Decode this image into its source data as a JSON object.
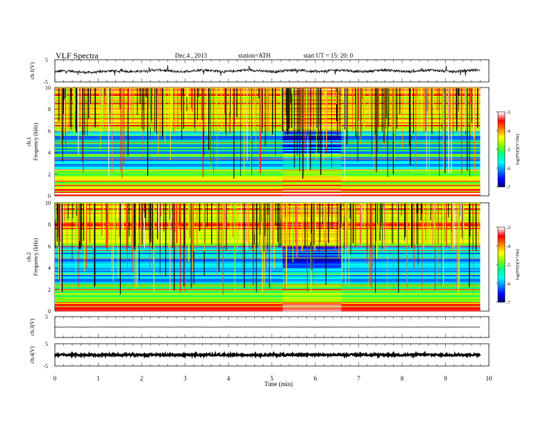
{
  "header": {
    "title": "VLF  Spectra",
    "date": "Dec.4  , 2013",
    "station": "station=ATH",
    "start": "start  UT  =    15: 20: 0"
  },
  "chart_data": [
    {
      "type": "line",
      "name": "ch1-waveform",
      "ylabel": "ch.1(V)",
      "ylim": [
        -5,
        5
      ],
      "yticks": [
        "5",
        "-5"
      ],
      "baseline": 0,
      "xlim": [
        0,
        10
      ],
      "x_end": 9.8
    },
    {
      "type": "heatmap",
      "name": "ch1-spectrogram",
      "ylabel": "ch.1\nFrequency  (kHz)",
      "ylabel_line1": "ch.1",
      "ylabel_line2": "Frequency  (kHz)",
      "ylim": [
        0,
        10
      ],
      "yticks": [
        "0",
        "2",
        "4",
        "6",
        "8",
        "10"
      ],
      "xlim": [
        0,
        10
      ],
      "x_end": 9.8,
      "disturbance_interval_min": [
        5.25,
        6.6
      ],
      "colorbar": {
        "label": "log(PSD)(V²/Hz)",
        "range": [
          -7,
          -3
        ],
        "ticks": [
          "-3",
          "-4",
          "-5",
          "-6",
          "-7"
        ]
      }
    },
    {
      "type": "heatmap",
      "name": "ch2-spectrogram",
      "ylabel": "ch.2\nFrequency  (kHz)",
      "ylabel_line1": "ch.2",
      "ylabel_line2": "Frequency  (kHz)",
      "ylim": [
        0,
        10
      ],
      "yticks": [
        "0",
        "2",
        "4",
        "6",
        "8",
        "10"
      ],
      "xlim": [
        0,
        10
      ],
      "x_end": 9.8,
      "disturbance_interval_min": [
        5.25,
        6.6
      ],
      "colorbar": {
        "label": "log(PSD)(V²/Hz)",
        "range": [
          -7,
          -3
        ],
        "ticks": [
          "-3",
          "-4",
          "-5",
          "-6",
          "-7"
        ]
      }
    },
    {
      "type": "line",
      "name": "ch3-waveform",
      "ylabel": "ch.3(V)",
      "ylim": [
        -5,
        5
      ],
      "yticks": [
        "5"
      ],
      "baseline": 0,
      "xlim": [
        0,
        10
      ],
      "x_end": 9.8
    },
    {
      "type": "line",
      "name": "ch4-waveform",
      "ylabel": "ch.4(V)",
      "ylim": [
        -5,
        5
      ],
      "yticks": [
        "5",
        "-5"
      ],
      "baseline": 0,
      "xlim": [
        0,
        10
      ],
      "x_end": 9.8
    }
  ],
  "x_axis": {
    "label": "Time  (min)",
    "ticks": [
      "0",
      "1",
      "2",
      "3",
      "4",
      "5",
      "6",
      "7",
      "8",
      "9",
      "10"
    ]
  },
  "colors": {
    "colormap": [
      "#000070",
      "#0000ff",
      "#0080ff",
      "#00ffff",
      "#00ff80",
      "#80ff00",
      "#ffff00",
      "#ff8000",
      "#ff0000",
      "#ffffff"
    ]
  }
}
